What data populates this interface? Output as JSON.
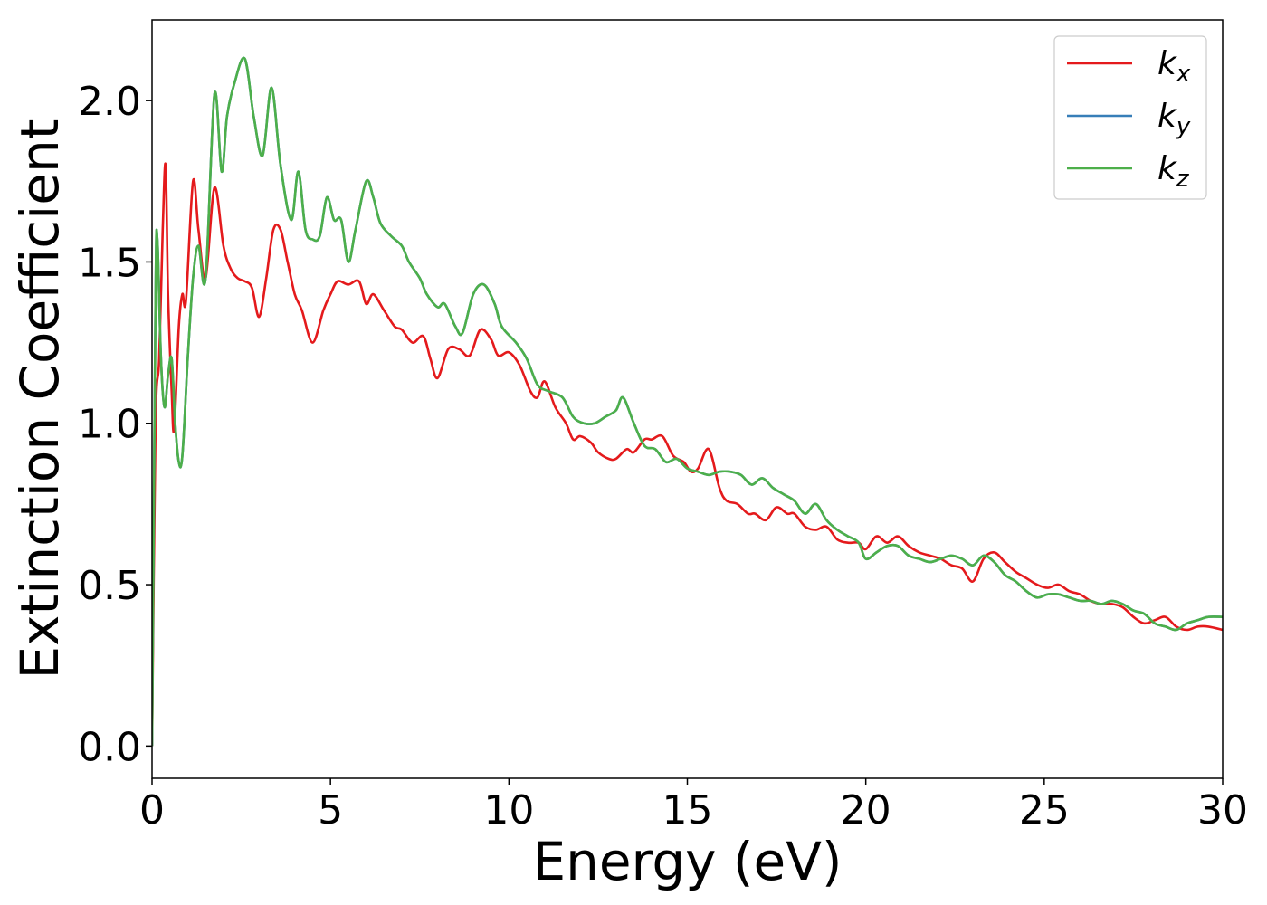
{
  "chart_data": {
    "type": "line",
    "title": "",
    "xlabel": "Energy (eV)",
    "ylabel": "Extinction Coefficient",
    "xlim": [
      0,
      30
    ],
    "ylim": [
      -0.1,
      2.25
    ],
    "xticks": [
      0,
      5,
      10,
      15,
      20,
      25,
      30
    ],
    "xtick_labels": [
      "0",
      "5",
      "10",
      "15",
      "20",
      "25",
      "30"
    ],
    "yticks": [
      0.0,
      0.5,
      1.0,
      1.5,
      2.0
    ],
    "ytick_labels": [
      "0.0",
      "0.5",
      "1.0",
      "1.5",
      "2.0"
    ],
    "grid": false,
    "legend_position": "top-right",
    "series": [
      {
        "name": "k_x",
        "label_main": "k",
        "label_sub": "x",
        "color": "#e41a1c",
        "x": [
          0,
          0.1,
          0.2,
          0.3,
          0.38,
          0.45,
          0.55,
          0.62,
          0.75,
          0.85,
          0.95,
          1.15,
          1.3,
          1.5,
          1.75,
          2.0,
          2.2,
          2.4,
          2.6,
          2.8,
          3.0,
          3.2,
          3.4,
          3.6,
          3.8,
          4.0,
          4.2,
          4.5,
          4.8,
          5.0,
          5.2,
          5.5,
          5.8,
          6.0,
          6.2,
          6.5,
          6.8,
          7.0,
          7.3,
          7.6,
          7.8,
          8.0,
          8.3,
          8.6,
          8.9,
          9.2,
          9.5,
          9.7,
          10.0,
          10.3,
          10.6,
          10.8,
          11.0,
          11.3,
          11.6,
          11.8,
          12.0,
          12.3,
          12.5,
          12.8,
          13.0,
          13.3,
          13.5,
          13.8,
          14.0,
          14.3,
          14.6,
          14.9,
          15.1,
          15.3,
          15.6,
          15.9,
          16.1,
          16.4,
          16.7,
          16.9,
          17.2,
          17.5,
          17.8,
          18.0,
          18.3,
          18.6,
          18.9,
          19.2,
          19.5,
          19.8,
          20.0,
          20.3,
          20.6,
          20.9,
          21.2,
          21.5,
          21.8,
          22.1,
          22.4,
          22.7,
          23.0,
          23.3,
          23.6,
          23.9,
          24.2,
          24.5,
          24.8,
          25.1,
          25.4,
          25.7,
          26.0,
          26.3,
          26.6,
          26.9,
          27.2,
          27.5,
          27.8,
          28.1,
          28.4,
          28.7,
          29.0,
          29.3,
          29.6,
          30.0
        ],
        "y": [
          0.0,
          1.0,
          1.2,
          1.6,
          1.8,
          1.4,
          1.1,
          0.98,
          1.3,
          1.4,
          1.38,
          1.75,
          1.6,
          1.45,
          1.73,
          1.55,
          1.48,
          1.45,
          1.44,
          1.42,
          1.33,
          1.45,
          1.6,
          1.6,
          1.5,
          1.4,
          1.35,
          1.25,
          1.35,
          1.4,
          1.44,
          1.43,
          1.44,
          1.37,
          1.4,
          1.35,
          1.3,
          1.29,
          1.25,
          1.27,
          1.2,
          1.14,
          1.23,
          1.23,
          1.21,
          1.29,
          1.26,
          1.21,
          1.22,
          1.18,
          1.1,
          1.08,
          1.13,
          1.05,
          1.0,
          0.95,
          0.96,
          0.94,
          0.91,
          0.89,
          0.89,
          0.92,
          0.91,
          0.95,
          0.95,
          0.96,
          0.9,
          0.88,
          0.85,
          0.86,
          0.92,
          0.8,
          0.76,
          0.75,
          0.72,
          0.72,
          0.7,
          0.74,
          0.72,
          0.72,
          0.68,
          0.67,
          0.68,
          0.64,
          0.63,
          0.63,
          0.61,
          0.65,
          0.63,
          0.65,
          0.62,
          0.6,
          0.59,
          0.58,
          0.56,
          0.55,
          0.51,
          0.58,
          0.6,
          0.57,
          0.54,
          0.52,
          0.5,
          0.49,
          0.5,
          0.48,
          0.47,
          0.45,
          0.44,
          0.44,
          0.43,
          0.4,
          0.38,
          0.39,
          0.4,
          0.37,
          0.36,
          0.37,
          0.37,
          0.36
        ]
      },
      {
        "name": "k_y",
        "label_main": "k",
        "label_sub": "y",
        "color": "#377eb8",
        "x": [
          0,
          0.1,
          0.15,
          0.25,
          0.35,
          0.45,
          0.55,
          0.65,
          0.75,
          0.85,
          1.0,
          1.15,
          1.3,
          1.5,
          1.75,
          1.95,
          2.1,
          2.3,
          2.6,
          2.85,
          3.1,
          3.35,
          3.6,
          3.9,
          4.1,
          4.3,
          4.5,
          4.7,
          4.9,
          5.1,
          5.3,
          5.5,
          5.7,
          6.0,
          6.2,
          6.4,
          6.7,
          7.0,
          7.2,
          7.5,
          7.7,
          8.0,
          8.2,
          8.5,
          8.7,
          9.0,
          9.3,
          9.6,
          9.8,
          10.2,
          10.5,
          10.8,
          11.1,
          11.5,
          11.8,
          12.1,
          12.4,
          12.7,
          13.0,
          13.2,
          13.5,
          13.8,
          14.1,
          14.4,
          14.7,
          15.0,
          15.3,
          15.6,
          15.9,
          16.2,
          16.5,
          16.8,
          17.1,
          17.4,
          17.7,
          18.0,
          18.3,
          18.6,
          18.9,
          19.2,
          19.5,
          19.8,
          20.0,
          20.3,
          20.6,
          20.9,
          21.2,
          21.5,
          21.8,
          22.1,
          22.4,
          22.7,
          23.0,
          23.3,
          23.6,
          23.9,
          24.2,
          24.5,
          24.8,
          25.1,
          25.4,
          25.7,
          26.0,
          26.3,
          26.6,
          26.9,
          27.2,
          27.5,
          27.8,
          28.1,
          28.4,
          28.7,
          29.0,
          29.3,
          29.6,
          30.0
        ],
        "y": [
          0.0,
          1.4,
          1.57,
          1.2,
          1.05,
          1.15,
          1.2,
          1.0,
          0.88,
          0.9,
          1.2,
          1.45,
          1.55,
          1.45,
          2.02,
          1.78,
          1.95,
          2.05,
          2.13,
          1.95,
          1.83,
          2.04,
          1.8,
          1.63,
          1.78,
          1.6,
          1.57,
          1.58,
          1.7,
          1.63,
          1.63,
          1.5,
          1.6,
          1.75,
          1.7,
          1.62,
          1.58,
          1.55,
          1.5,
          1.45,
          1.4,
          1.36,
          1.37,
          1.3,
          1.28,
          1.4,
          1.43,
          1.37,
          1.3,
          1.25,
          1.2,
          1.12,
          1.1,
          1.08,
          1.02,
          1.0,
          1.0,
          1.02,
          1.04,
          1.08,
          1.0,
          0.93,
          0.92,
          0.88,
          0.89,
          0.86,
          0.85,
          0.84,
          0.85,
          0.85,
          0.84,
          0.81,
          0.83,
          0.8,
          0.78,
          0.76,
          0.72,
          0.75,
          0.7,
          0.67,
          0.65,
          0.63,
          0.58,
          0.6,
          0.62,
          0.62,
          0.59,
          0.58,
          0.57,
          0.58,
          0.59,
          0.58,
          0.56,
          0.59,
          0.57,
          0.53,
          0.51,
          0.48,
          0.46,
          0.47,
          0.47,
          0.46,
          0.45,
          0.45,
          0.44,
          0.45,
          0.44,
          0.42,
          0.41,
          0.38,
          0.37,
          0.36,
          0.38,
          0.39,
          0.4,
          0.4
        ]
      },
      {
        "name": "k_z",
        "label_main": "k",
        "label_sub": "z",
        "color": "#4daf4a",
        "x": [
          0,
          0.1,
          0.15,
          0.25,
          0.35,
          0.45,
          0.55,
          0.65,
          0.75,
          0.85,
          1.0,
          1.15,
          1.3,
          1.5,
          1.75,
          1.95,
          2.1,
          2.3,
          2.6,
          2.85,
          3.1,
          3.35,
          3.6,
          3.9,
          4.1,
          4.3,
          4.5,
          4.7,
          4.9,
          5.1,
          5.3,
          5.5,
          5.7,
          6.0,
          6.2,
          6.4,
          6.7,
          7.0,
          7.2,
          7.5,
          7.7,
          8.0,
          8.2,
          8.5,
          8.7,
          9.0,
          9.3,
          9.6,
          9.8,
          10.2,
          10.5,
          10.8,
          11.1,
          11.5,
          11.8,
          12.1,
          12.4,
          12.7,
          13.0,
          13.2,
          13.5,
          13.8,
          14.1,
          14.4,
          14.7,
          15.0,
          15.3,
          15.6,
          15.9,
          16.2,
          16.5,
          16.8,
          17.1,
          17.4,
          17.7,
          18.0,
          18.3,
          18.6,
          18.9,
          19.2,
          19.5,
          19.8,
          20.0,
          20.3,
          20.6,
          20.9,
          21.2,
          21.5,
          21.8,
          22.1,
          22.4,
          22.7,
          23.0,
          23.3,
          23.6,
          23.9,
          24.2,
          24.5,
          24.8,
          25.1,
          25.4,
          25.7,
          26.0,
          26.3,
          26.6,
          26.9,
          27.2,
          27.5,
          27.8,
          28.1,
          28.4,
          28.7,
          29.0,
          29.3,
          29.6,
          30.0
        ],
        "y": [
          0.0,
          1.4,
          1.57,
          1.2,
          1.05,
          1.15,
          1.2,
          1.0,
          0.88,
          0.9,
          1.2,
          1.45,
          1.55,
          1.45,
          2.02,
          1.78,
          1.95,
          2.05,
          2.13,
          1.95,
          1.83,
          2.04,
          1.8,
          1.63,
          1.78,
          1.6,
          1.57,
          1.58,
          1.7,
          1.63,
          1.63,
          1.5,
          1.6,
          1.75,
          1.7,
          1.62,
          1.58,
          1.55,
          1.5,
          1.45,
          1.4,
          1.36,
          1.37,
          1.3,
          1.28,
          1.4,
          1.43,
          1.37,
          1.3,
          1.25,
          1.2,
          1.12,
          1.1,
          1.08,
          1.02,
          1.0,
          1.0,
          1.02,
          1.04,
          1.08,
          1.0,
          0.93,
          0.92,
          0.88,
          0.89,
          0.86,
          0.85,
          0.84,
          0.85,
          0.85,
          0.84,
          0.81,
          0.83,
          0.8,
          0.78,
          0.76,
          0.72,
          0.75,
          0.7,
          0.67,
          0.65,
          0.63,
          0.58,
          0.6,
          0.62,
          0.62,
          0.59,
          0.58,
          0.57,
          0.58,
          0.59,
          0.58,
          0.56,
          0.59,
          0.57,
          0.53,
          0.51,
          0.48,
          0.46,
          0.47,
          0.47,
          0.46,
          0.45,
          0.45,
          0.44,
          0.45,
          0.44,
          0.42,
          0.41,
          0.38,
          0.37,
          0.36,
          0.38,
          0.39,
          0.4,
          0.4
        ]
      }
    ]
  }
}
